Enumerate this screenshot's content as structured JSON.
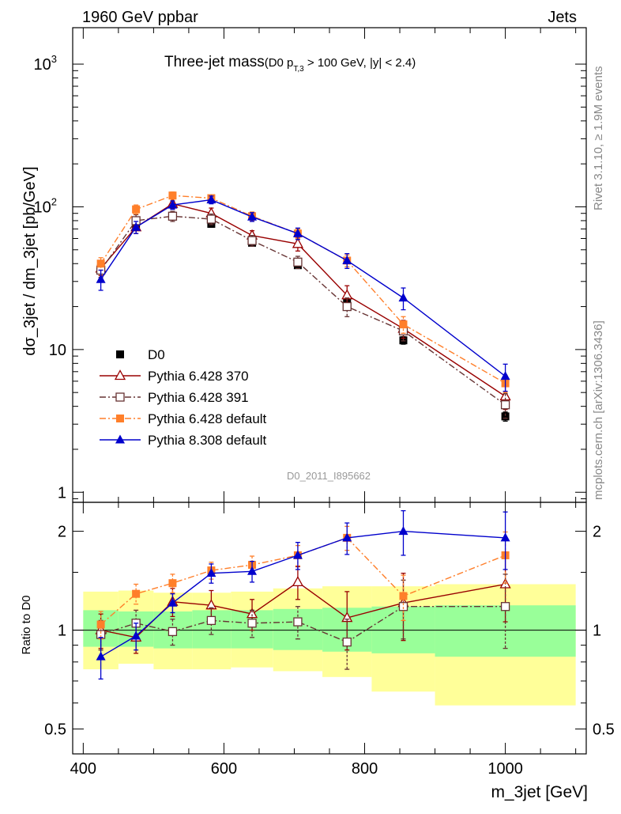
{
  "header": {
    "left": "1960 GeV ppbar",
    "right": "Jets"
  },
  "side_labels": {
    "rivet": "Rivet 3.1.10, ≥ 1.9M events",
    "mcplots": "mcplots.cern.ch [arXiv:1306.3436]"
  },
  "watermark": "D0_2011_I895662",
  "title": {
    "main": "Three-jet mass",
    "sub_open": "(D0 p",
    "sub_subscript": "T,3",
    "sub_close": " > 100 GeV, |y| < 2.4)"
  },
  "axes": {
    "main_ylabel": "dσ_3jet / dm_3jet [pb/GeV]",
    "ratio_ylabel": "Ratio to D0",
    "xlabel": "m_3jet [GeV]"
  },
  "legend": {
    "placement": "lower-left",
    "entries": [
      {
        "label": "D0",
        "series": "data"
      },
      {
        "label": "Pythia 6.428 370",
        "series": "p370"
      },
      {
        "label": "Pythia 6.428 391",
        "series": "p391"
      },
      {
        "label": "Pythia 6.428 default",
        "series": "p6def"
      },
      {
        "label": "Pythia 8.308 default",
        "series": "p8def"
      }
    ]
  },
  "chart_data": [
    {
      "type": "scatter",
      "panel": "main",
      "xlabel": "m_3jet [GeV]",
      "ylabel": "dσ_3jet / dm_3jet [pb/GeV]",
      "xlim": [
        385,
        1115
      ],
      "ylim": [
        0.85,
        1800
      ],
      "yscale": "log",
      "x_ticks": [
        400,
        600,
        800,
        1000
      ],
      "y_ticks": [
        {
          "value": 1,
          "label": "1"
        },
        {
          "value": 10,
          "label": "10"
        },
        {
          "value": 100,
          "label": "10",
          "sup": "2"
        },
        {
          "value": 1000,
          "label": "10",
          "sup": "3"
        }
      ],
      "x_edges": [
        400,
        450,
        500,
        555,
        610,
        670,
        740,
        810,
        900,
        1100
      ],
      "x": [
        425,
        475,
        527,
        582,
        640,
        705,
        775,
        855,
        1000
      ],
      "series": [
        {
          "key": "data",
          "name": "D0",
          "color": "#000000",
          "marker": "square-filled",
          "line": "none",
          "values": [
            37,
            76,
            86,
            76,
            56,
            39,
            22,
            11.6,
            3.4
          ],
          "errors": [
            2,
            4,
            4,
            4,
            3,
            2,
            1.2,
            0.7,
            0.25
          ]
        },
        {
          "key": "p370",
          "name": "Pythia 6.428 370",
          "color": "#990000",
          "marker": "triangle-open",
          "line": "solid",
          "values": [
            37,
            72,
            105,
            90,
            63,
            55,
            24,
            14,
            4.7
          ],
          "errors": [
            4,
            7,
            8,
            8,
            5,
            6,
            4,
            2,
            0.9
          ]
        },
        {
          "key": "p391",
          "name": "Pythia 6.428 391",
          "color": "#663333",
          "marker": "square-open",
          "line": "dashdot",
          "values": [
            36,
            80,
            86,
            82,
            58,
            41,
            20,
            13.5,
            4.1
          ],
          "errors": [
            4,
            8,
            7,
            7,
            5,
            4,
            3,
            2,
            0.8
          ]
        },
        {
          "key": "p6def",
          "name": "Pythia 6.428 default",
          "color": "#ff7f2a",
          "marker": "square-filled",
          "line": "dashdot",
          "values": [
            40,
            96,
            120,
            115,
            86,
            65,
            42,
            15,
            5.8
          ],
          "errors": [
            4,
            7,
            7,
            6,
            6,
            5,
            4,
            2,
            0.8
          ]
        },
        {
          "key": "p8def",
          "name": "Pythia 8.308 default",
          "color": "#0000cc",
          "marker": "triangle-filled",
          "line": "solid",
          "values": [
            31,
            72,
            103,
            112,
            85,
            65,
            42,
            23,
            6.5
          ],
          "errors": [
            5,
            7,
            7,
            7,
            6,
            6,
            5,
            4,
            1.4
          ]
        }
      ]
    },
    {
      "type": "scatter",
      "panel": "ratio",
      "xlabel": "m_3jet [GeV]",
      "ylabel": "Ratio to D0",
      "xlim": [
        385,
        1115
      ],
      "ylim": [
        0.42,
        2.45
      ],
      "yscale": "log",
      "x_ticks": [
        400,
        600,
        800,
        1000
      ],
      "y_ticks": [
        0.5,
        1,
        2
      ],
      "x": [
        425,
        475,
        527,
        582,
        640,
        705,
        775,
        855,
        1000
      ],
      "bands": {
        "edges": [
          400,
          450,
          500,
          555,
          610,
          670,
          740,
          810,
          900,
          1100
        ],
        "outer_color": "#ffff99",
        "inner_color": "#99ff99",
        "outer_lo": [
          0.76,
          0.79,
          0.76,
          0.76,
          0.77,
          0.75,
          0.72,
          0.65,
          0.59
        ],
        "outer_hi": [
          1.31,
          1.32,
          1.3,
          1.3,
          1.31,
          1.34,
          1.36,
          1.36,
          1.38
        ],
        "inner_lo": [
          0.89,
          0.89,
          0.88,
          0.88,
          0.88,
          0.87,
          0.86,
          0.85,
          0.83
        ],
        "inner_hi": [
          1.15,
          1.14,
          1.14,
          1.15,
          1.15,
          1.16,
          1.17,
          1.18,
          1.19
        ]
      },
      "series": [
        {
          "key": "p370",
          "name": "Pythia 6.428 370",
          "color": "#990000",
          "marker": "triangle-open",
          "line": "solid",
          "values": [
            1.0,
            0.95,
            1.22,
            1.19,
            1.12,
            1.4,
            1.09,
            1.21,
            1.38
          ],
          "errors": [
            0.12,
            0.1,
            0.12,
            0.13,
            0.12,
            0.16,
            0.22,
            0.28,
            0.32
          ]
        },
        {
          "key": "p391",
          "name": "Pythia 6.428 391",
          "color": "#663333",
          "marker": "square-open",
          "line": "dashdot",
          "values": [
            0.97,
            1.05,
            0.99,
            1.07,
            1.05,
            1.06,
            0.92,
            1.18,
            1.18
          ],
          "errors": [
            0.1,
            0.1,
            0.09,
            0.1,
            0.1,
            0.12,
            0.16,
            0.24,
            0.3
          ]
        },
        {
          "key": "p6def",
          "name": "Pythia 6.428 default",
          "color": "#ff7f2a",
          "marker": "square-filled",
          "line": "dashdot",
          "values": [
            1.04,
            1.29,
            1.39,
            1.52,
            1.58,
            1.69,
            1.91,
            1.27,
            1.69
          ],
          "errors": [
            0.1,
            0.09,
            0.09,
            0.09,
            0.1,
            0.12,
            0.16,
            0.2,
            0.3
          ]
        },
        {
          "key": "p8def",
          "name": "Pythia 8.308 default",
          "color": "#0000cc",
          "marker": "triangle-filled",
          "line": "solid",
          "values": [
            0.83,
            0.96,
            1.21,
            1.49,
            1.51,
            1.69,
            1.91,
            2.0,
            1.91
          ],
          "errors": [
            0.12,
            0.09,
            0.08,
            0.1,
            0.11,
            0.16,
            0.21,
            0.31,
            0.38
          ]
        }
      ]
    }
  ]
}
